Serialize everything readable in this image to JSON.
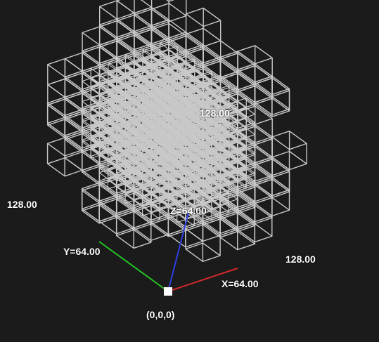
{
  "viewer": {
    "dimension_top": "128.00",
    "dimension_left": "128.00",
    "dimension_right": "128.00",
    "axis_z_label": "Z=64.00",
    "axis_y_label": "Y=64.00",
    "axis_x_label": "X=64.00",
    "origin_label": "(0,0,0)"
  },
  "colors": {
    "background": "#1b1b1b",
    "wireframe": "#c8c8c8",
    "axis_x": "#d42a2a",
    "axis_y": "#22c422",
    "axis_z": "#2f3fe0",
    "origin_marker": "#ffffff"
  }
}
